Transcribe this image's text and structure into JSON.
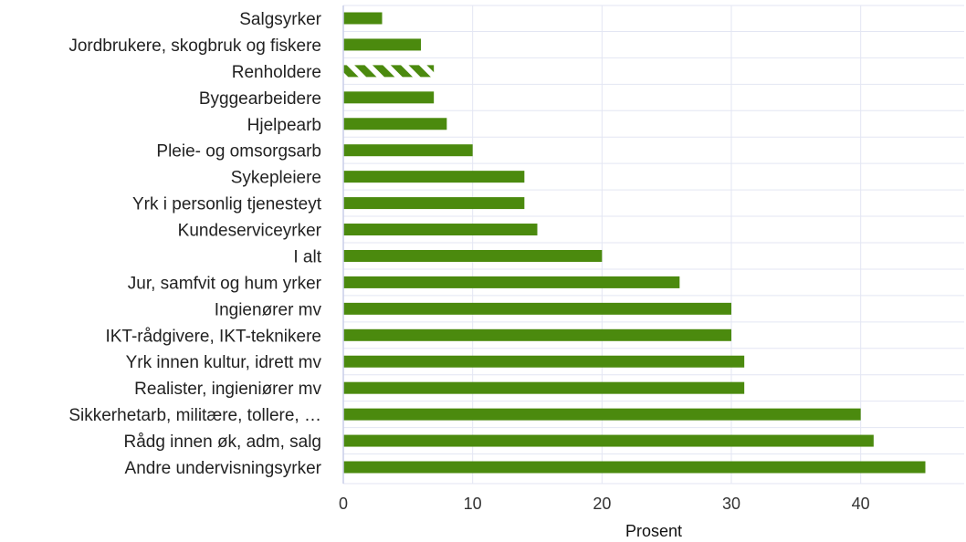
{
  "chart_data": {
    "type": "bar",
    "orientation": "horizontal",
    "xlabel": "Prosent",
    "ylabel": "",
    "xlim": [
      0,
      48
    ],
    "xticks": [
      0,
      10,
      20,
      30,
      40
    ],
    "grid": true,
    "colors": {
      "bar": "#4b8a0e",
      "grid": "#e3e6f3",
      "axis": "#c9cde8"
    },
    "categories": [
      "Salgsyrker",
      "Jordbrukere, skogbruk og fiskere",
      "Renholdere",
      "Byggearbeidere",
      "Hjelpearb",
      "Pleie- og omsorgsarb",
      "Sykepleiere",
      "Yrk i personlig tjenesteyt",
      "Kundeserviceyrker",
      "I alt",
      "Jur, samfvit og hum yrker",
      "Ingienører mv",
      "IKT-rådgivere, IKT-teknikere",
      "Yrk innen kultur, idrett mv",
      "Realister, ingieniører mv",
      "Sikkerhetarb, militære, tollere, …",
      "Rådg innen øk, adm, salg",
      "Andre undervisningsyrker"
    ],
    "values": [
      3,
      6,
      7,
      7,
      8,
      10,
      14,
      14,
      15,
      20,
      26,
      30,
      30,
      31,
      31,
      40,
      41,
      45
    ],
    "hatched": [
      false,
      false,
      true,
      false,
      false,
      false,
      false,
      false,
      false,
      false,
      false,
      false,
      false,
      false,
      false,
      false,
      false,
      false
    ]
  }
}
